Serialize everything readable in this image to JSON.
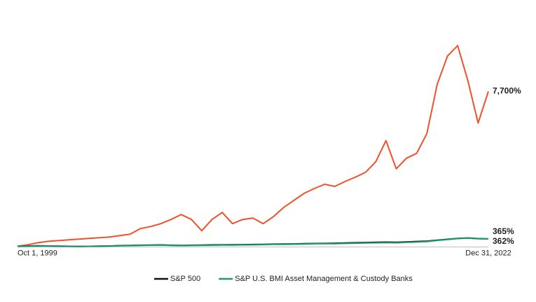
{
  "chart_data": {
    "type": "line",
    "categories": [
      "Oct 1, 1999",
      null,
      null,
      null,
      null,
      null,
      null,
      null,
      null,
      null,
      null,
      null,
      null,
      null,
      null,
      null,
      null,
      null,
      null,
      null,
      null,
      null,
      null,
      null,
      null,
      null,
      null,
      null,
      null,
      null,
      null,
      null,
      null,
      null,
      null,
      null,
      null,
      null,
      null,
      null,
      null,
      null,
      null,
      null,
      null,
      null,
      "Dec 31, 2022"
    ],
    "ylim": [
      -300,
      10500
    ],
    "series": [
      {
        "color": "#f0502a",
        "values": [
          0,
          70,
          175,
          245,
          280,
          315,
          350,
          385,
          420,
          455,
          525,
          595,
          875,
          980,
          1120,
          1330,
          1575,
          1330,
          770,
          1330,
          1680,
          1120,
          1330,
          1400,
          1120,
          1470,
          1925,
          2275,
          2625,
          2870,
          3080,
          2975,
          3220,
          3430,
          3675,
          4200,
          5250,
          3850,
          4375,
          4620,
          5600,
          8050,
          9450,
          9975,
          8225,
          6125,
          7700
        ],
        "value_labels": [
          null,
          null,
          null,
          null,
          null,
          null,
          null,
          null,
          null,
          null,
          null,
          null,
          null,
          null,
          null,
          null,
          null,
          null,
          null,
          null,
          null,
          null,
          null,
          null,
          null,
          null,
          null,
          null,
          null,
          null,
          null,
          null,
          null,
          null,
          null,
          null,
          null,
          null,
          null,
          null,
          null,
          null,
          null,
          null,
          null,
          null,
          "7,700%"
        ]
      },
      {
        "name": "S&P 500",
        "color": "#111111",
        "values": [
          0,
          10,
          20,
          15,
          5,
          -5,
          -10,
          -5,
          5,
          15,
          30,
          40,
          50,
          60,
          65,
          50,
          40,
          50,
          60,
          65,
          70,
          75,
          80,
          85,
          95,
          105,
          110,
          115,
          125,
          135,
          140,
          150,
          160,
          175,
          185,
          195,
          205,
          195,
          215,
          235,
          255,
          300,
          345,
          390,
          410,
          380,
          365
        ],
        "value_labels": [
          null,
          null,
          null,
          null,
          null,
          null,
          null,
          null,
          null,
          null,
          null,
          null,
          null,
          null,
          null,
          null,
          null,
          null,
          null,
          null,
          null,
          null,
          null,
          null,
          null,
          null,
          null,
          null,
          null,
          null,
          null,
          null,
          null,
          null,
          null,
          null,
          null,
          null,
          null,
          null,
          null,
          null,
          null,
          null,
          null,
          null,
          "365%"
        ]
      },
      {
        "name": "S&P U.S. BMI Asset Management & Custody Banks",
        "color": "#1a9a72",
        "values": [
          0,
          5,
          10,
          10,
          5,
          0,
          -5,
          -5,
          0,
          10,
          20,
          30,
          40,
          50,
          55,
          40,
          30,
          40,
          45,
          50,
          55,
          60,
          65,
          70,
          80,
          90,
          95,
          100,
          110,
          120,
          125,
          130,
          140,
          150,
          160,
          170,
          180,
          170,
          190,
          210,
          230,
          290,
          330,
          380,
          400,
          370,
          362
        ],
        "value_labels": [
          null,
          null,
          null,
          null,
          null,
          null,
          null,
          null,
          null,
          null,
          null,
          null,
          null,
          null,
          null,
          null,
          null,
          null,
          null,
          null,
          null,
          null,
          null,
          null,
          null,
          null,
          null,
          null,
          null,
          null,
          null,
          null,
          null,
          null,
          null,
          null,
          null,
          null,
          null,
          null,
          null,
          null,
          null,
          null,
          null,
          null,
          "362%"
        ]
      }
    ]
  }
}
